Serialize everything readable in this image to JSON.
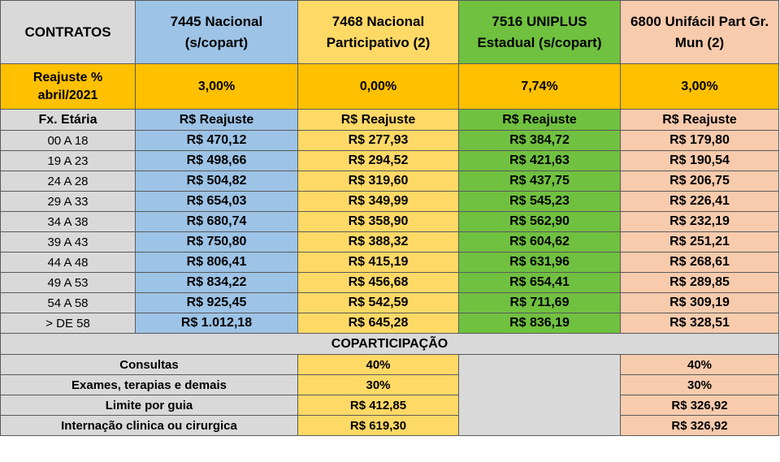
{
  "header": {
    "corner_label": "CONTRATOS",
    "contracts": [
      {
        "line1": "7445 Nacional",
        "line2": "(s/copart)"
      },
      {
        "line1": "7468 Nacional",
        "line2": "Participativo (2)"
      },
      {
        "line1": "7516 UNIPLUS",
        "line2": "Estadual (s/copart)"
      },
      {
        "line1": "6800 Unifácil Part Gr.",
        "line2": "Mun (2)"
      }
    ]
  },
  "reajuste": {
    "label_line1": "Reajuste %",
    "label_line2": "abril/2021",
    "values": [
      "3,00%",
      "0,00%",
      "7,74%",
      "3,00%"
    ]
  },
  "subheader": {
    "age_label": "Fx. Etária",
    "column_label": "R$ Reajuste"
  },
  "age_rows": [
    {
      "age": "00 A 18",
      "values": [
        "R$ 470,12",
        "R$ 277,93",
        "R$ 384,72",
        "R$ 179,80"
      ]
    },
    {
      "age": "19 A 23",
      "values": [
        "R$ 498,66",
        "R$ 294,52",
        "R$ 421,63",
        "R$ 190,54"
      ]
    },
    {
      "age": "24 A 28",
      "values": [
        "R$ 504,82",
        "R$ 319,60",
        "R$ 437,75",
        "R$ 206,75"
      ]
    },
    {
      "age": "29 A 33",
      "values": [
        "R$ 654,03",
        "R$ 349,99",
        "R$ 545,23",
        "R$ 226,41"
      ]
    },
    {
      "age": "34 A 38",
      "values": [
        "R$ 680,74",
        "R$ 358,90",
        "R$ 562,90",
        "R$ 232,19"
      ]
    },
    {
      "age": "39 A 43",
      "values": [
        "R$ 750,80",
        "R$ 388,32",
        "R$ 604,62",
        "R$ 251,21"
      ]
    },
    {
      "age": "44 A 48",
      "values": [
        "R$ 806,41",
        "R$ 415,19",
        "R$ 631,96",
        "R$ 268,61"
      ]
    },
    {
      "age": "49 A 53",
      "values": [
        "R$ 834,22",
        "R$ 456,68",
        "R$ 654,41",
        "R$ 289,85"
      ]
    },
    {
      "age": "54 A 58",
      "values": [
        "R$ 925,45",
        "R$ 542,59",
        "R$ 711,69",
        "R$ 309,19"
      ]
    },
    {
      "age": "> DE 58",
      "values": [
        "R$ 1.012,18",
        "R$ 645,28",
        "R$ 836,19",
        "R$ 328,51"
      ]
    }
  ],
  "copart": {
    "title": "COPARTICIPAÇÃO",
    "rows": [
      {
        "label": "Consultas",
        "col_7468": "40%",
        "col_6800": "40%"
      },
      {
        "label": "Exames, terapias e demais",
        "col_7468": "30%",
        "col_6800": "30%"
      },
      {
        "label": "Limite por guia",
        "col_7468": "R$ 412,85",
        "col_6800": "R$ 326,92"
      },
      {
        "label": "Internação clinica ou cirurgica",
        "col_7468": "R$ 619,30",
        "col_6800": "R$ 326,92"
      }
    ]
  },
  "colors": {
    "gray": "#d9d9d9",
    "blue": "#9dc3e6",
    "yellow": "#ffd966",
    "green": "#70c140",
    "peach": "#f8cbad",
    "orange": "#ffc000"
  }
}
